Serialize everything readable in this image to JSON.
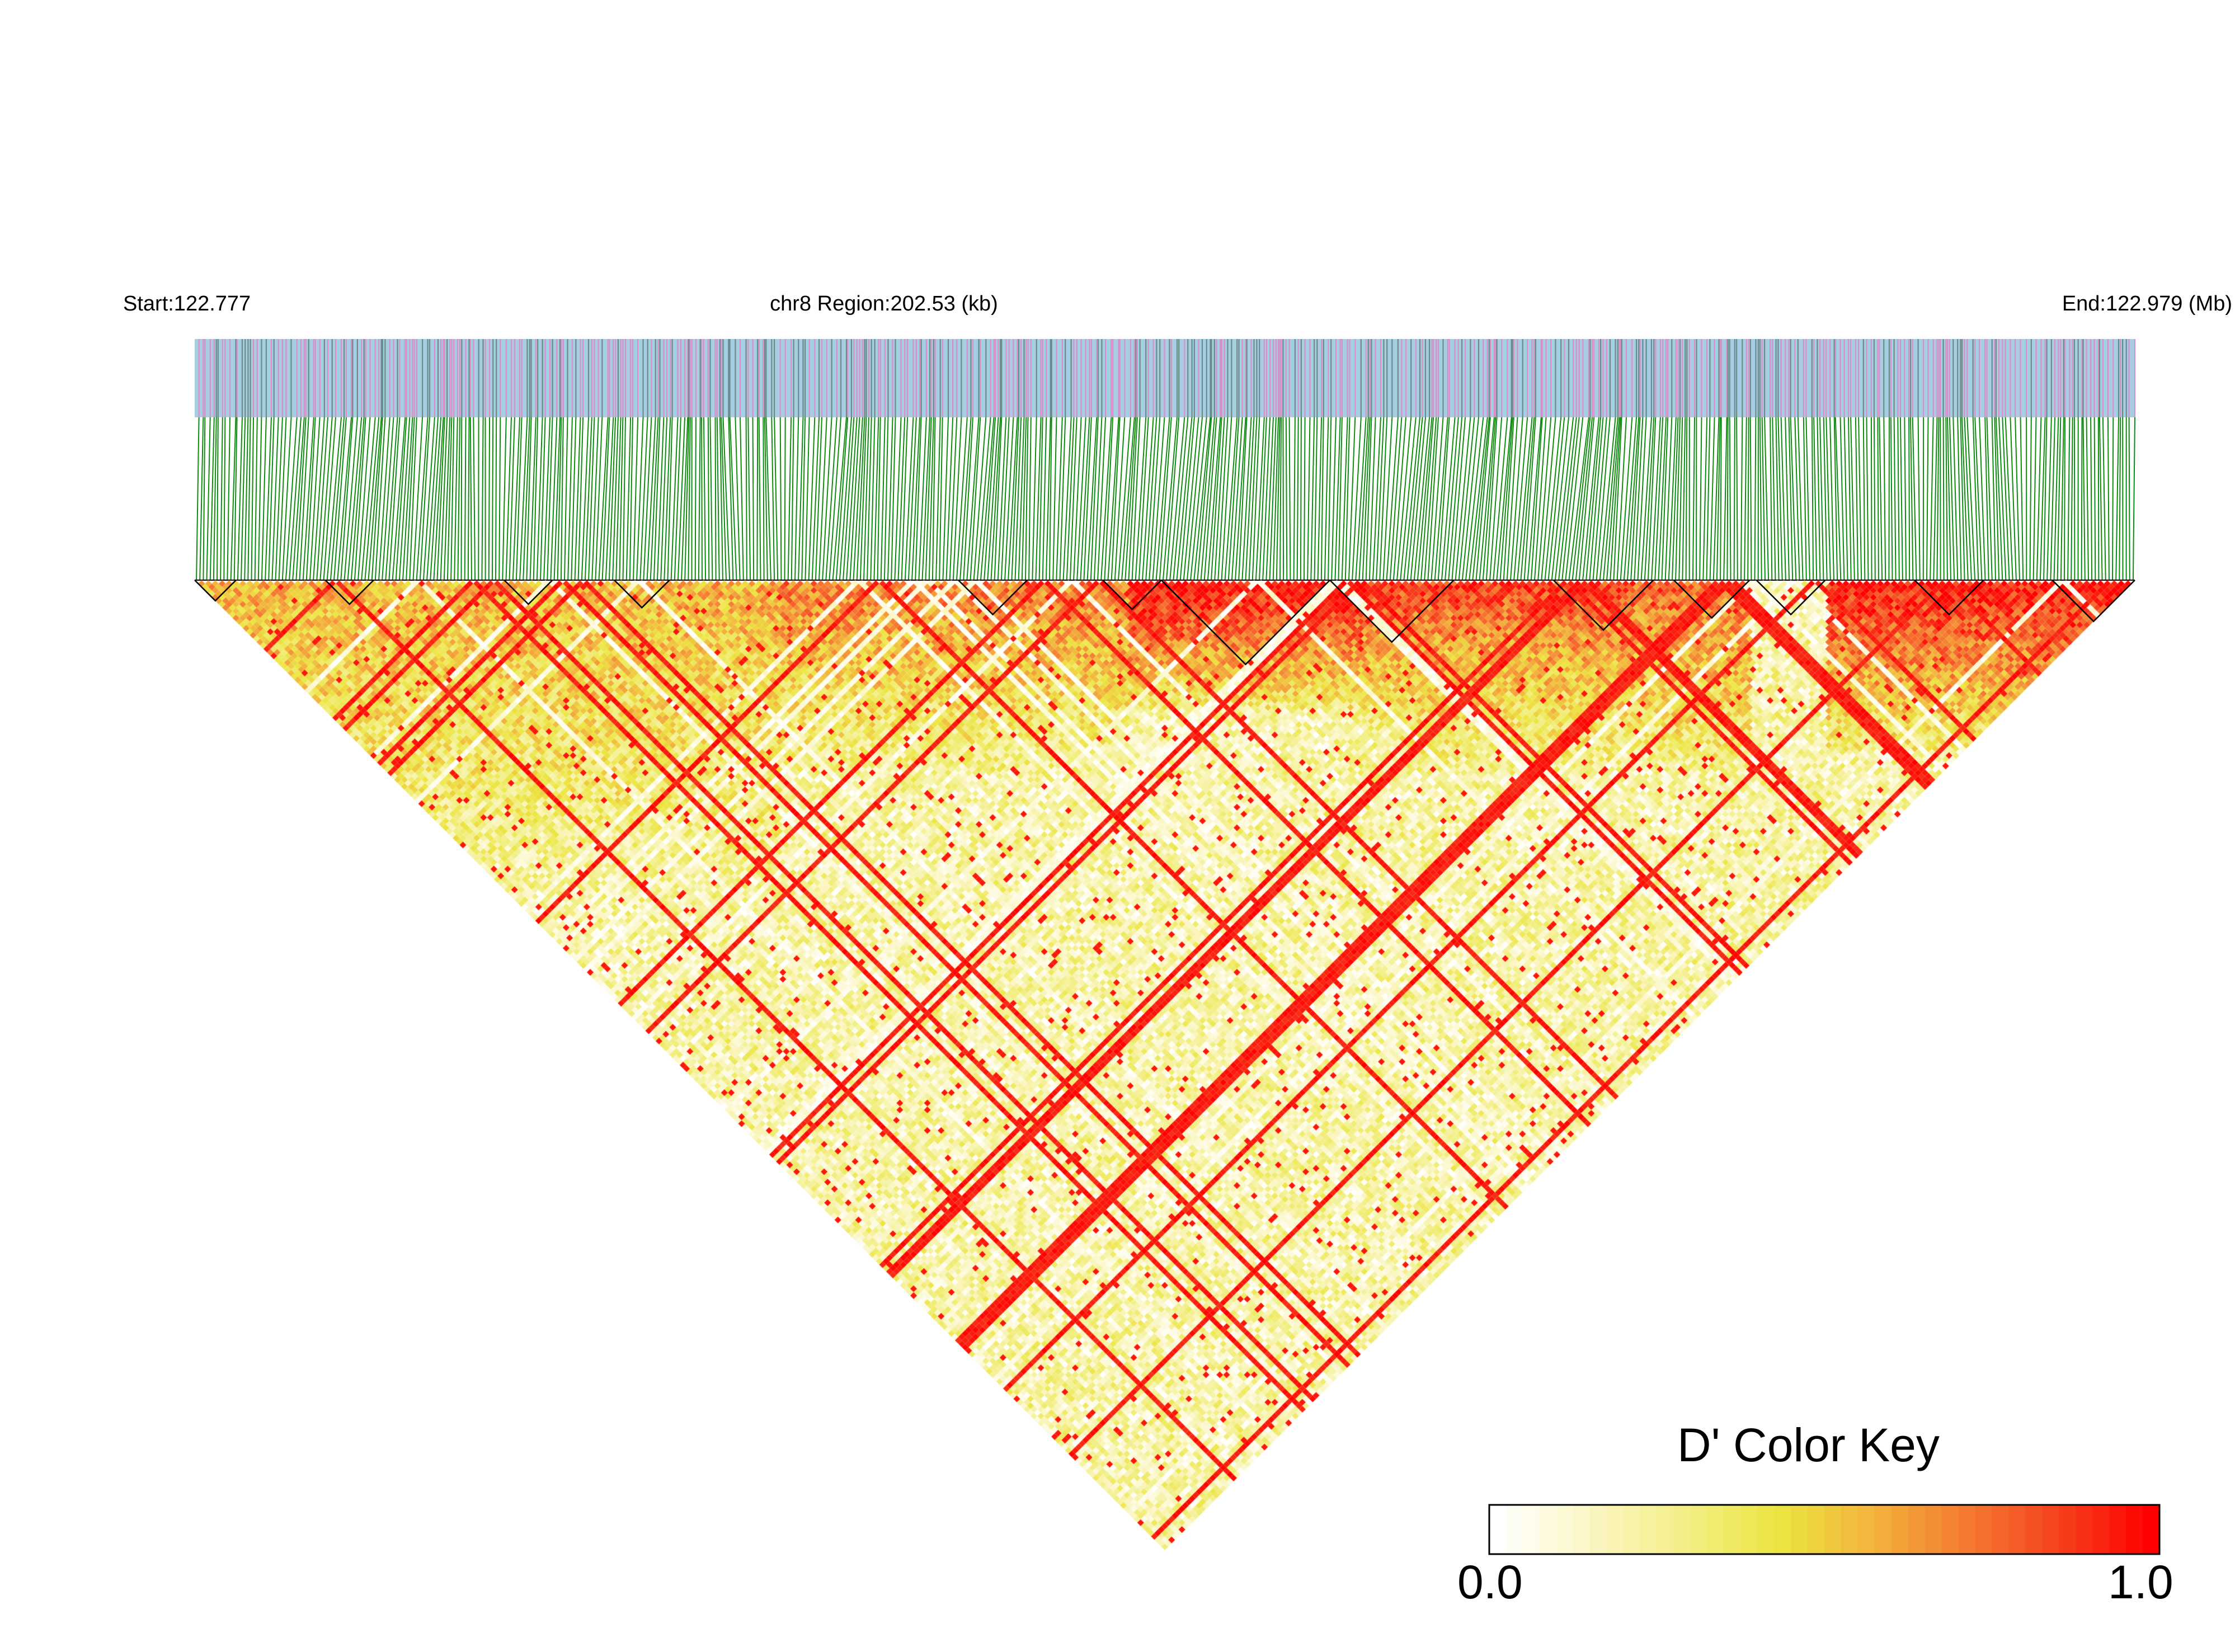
{
  "chart_data": {
    "type": "heatmap",
    "subtype": "linkage-disequilibrium-triangle",
    "chromosome": "chr8",
    "header": {
      "start_label": "Start:122.777",
      "region_label": "chr8 Region:202.53 (kb)",
      "end_label": "End:122.979 (Mb)"
    },
    "region": {
      "start_mb": 122.777,
      "end_mb": 122.979,
      "length_kb": 202.53
    },
    "metric": "D'",
    "color_key": {
      "title": "D' Color Key",
      "min_label": "0.0",
      "max_label": "1.0",
      "range": [
        0.0,
        1.0
      ],
      "stops": [
        "#ffffff",
        "#fbf6c4",
        "#f2ef86",
        "#ece541",
        "#f2b43c",
        "#f57b30",
        "#f5421e",
        "#ff0000"
      ]
    },
    "snp_track": {
      "background_color": "#a6cee3",
      "marker_colors": [
        "#d98ec8",
        "#6b8a8a"
      ]
    },
    "connector_color": "#108a10",
    "block_outline_color": "#000000",
    "blocks": [
      {
        "first_snp": 0,
        "last_snp": 12
      },
      {
        "first_snp": 38,
        "last_snp": 52
      },
      {
        "first_snp": 90,
        "last_snp": 104
      },
      {
        "first_snp": 122,
        "last_snp": 138
      },
      {
        "first_snp": 222,
        "last_snp": 242
      },
      {
        "first_snp": 264,
        "last_snp": 281
      },
      {
        "first_snp": 281,
        "last_snp": 330
      },
      {
        "first_snp": 330,
        "last_snp": 366
      },
      {
        "first_snp": 395,
        "last_snp": 424
      },
      {
        "first_snp": 430,
        "last_snp": 452
      },
      {
        "first_snp": 454,
        "last_snp": 474
      },
      {
        "first_snp": 500,
        "last_snp": 520
      },
      {
        "first_snp": 540,
        "last_snp": 564
      }
    ],
    "high_ld_regions": [
      {
        "range": [
          0.0,
          0.3
        ],
        "level": 0.55
      },
      {
        "range": [
          0.3,
          0.48
        ],
        "level": 0.7
      },
      {
        "range": [
          0.48,
          0.6
        ],
        "level": 1.0
      },
      {
        "range": [
          0.6,
          0.74
        ],
        "level": 0.85
      },
      {
        "range": [
          0.62,
          0.8
        ],
        "level": 0.75
      },
      {
        "range": [
          0.84,
          1.0
        ],
        "level": 0.95
      }
    ]
  }
}
